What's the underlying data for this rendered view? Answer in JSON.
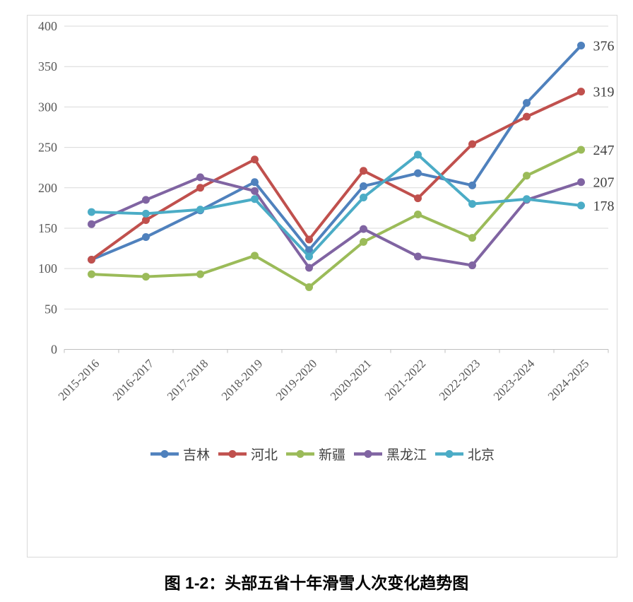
{
  "caption": "图 1-2：头部五省十年滑雪人次变化趋势图",
  "chart_data": {
    "type": "line",
    "title": "",
    "xlabel": "",
    "ylabel": "",
    "categories": [
      "2015-2016",
      "2016-2017",
      "2017-2018",
      "2018-2019",
      "2019-2020",
      "2020-2021",
      "2021-2022",
      "2022-2023",
      "2023-2024",
      "2024-2025"
    ],
    "series": [
      {
        "name": "吉林",
        "color": "#4F81BD",
        "values": [
          111,
          139,
          172,
          207,
          123,
          202,
          218,
          203,
          305,
          376
        ]
      },
      {
        "name": "河北",
        "color": "#C0504D",
        "values": [
          111,
          160,
          200,
          235,
          136,
          221,
          187,
          254,
          288,
          319
        ]
      },
      {
        "name": "新疆",
        "color": "#9BBB59",
        "values": [
          93,
          90,
          93,
          116,
          77,
          133,
          167,
          138,
          215,
          247
        ]
      },
      {
        "name": "黑龙江",
        "color": "#8064A2",
        "values": [
          155,
          185,
          213,
          196,
          101,
          149,
          115,
          104,
          185,
          207
        ]
      },
      {
        "name": "北京",
        "color": "#4BACC6",
        "values": [
          170,
          168,
          173,
          186,
          115,
          188,
          241,
          180,
          186,
          178
        ]
      }
    ],
    "end_labels": [
      "376",
      "319",
      "247",
      "207",
      "178"
    ],
    "ylim": [
      0,
      400
    ],
    "ytick_step": 50,
    "grid": true,
    "legend_position": "bottom",
    "marker": "circle",
    "colors": {
      "grid": "#d9d9d9",
      "axis": "#bfbfbf",
      "tick_label": "#595959",
      "data_label": "#404040",
      "legend_label": "#404040"
    }
  }
}
